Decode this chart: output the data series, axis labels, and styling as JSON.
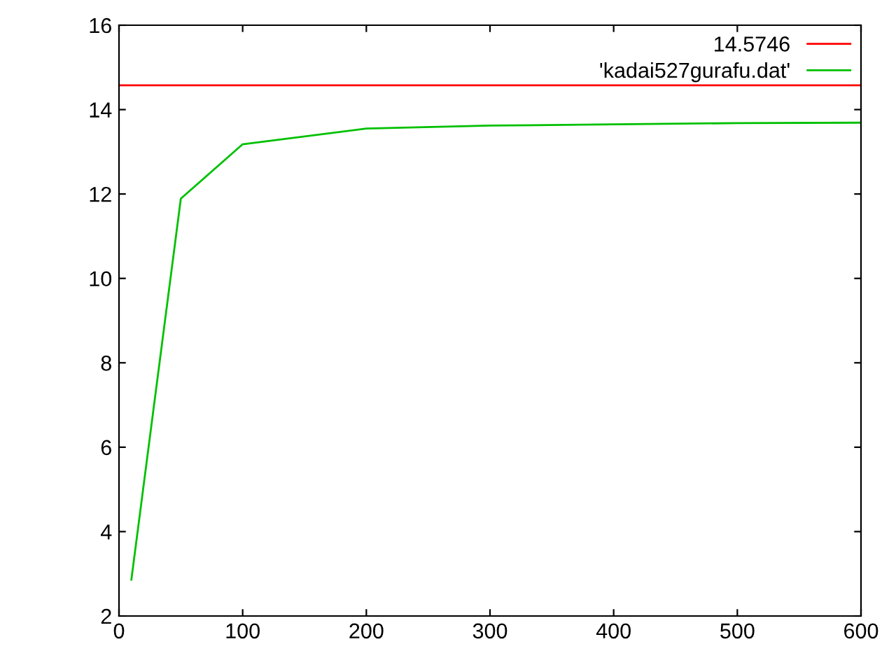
{
  "chart_data": {
    "type": "line",
    "x": [
      10,
      50,
      100,
      200,
      300,
      400,
      500,
      600
    ],
    "series": [
      {
        "name": "'kadai527gurafu.dat'",
        "color": "#00c000",
        "values": [
          2.86,
          11.89,
          13.18,
          13.55,
          13.62,
          13.65,
          13.68,
          13.69
        ]
      }
    ],
    "ref_lines": [
      {
        "axis": "y",
        "value": 14.5746,
        "label": "14.5746",
        "color": "#ff0000"
      }
    ],
    "xlim": [
      0,
      600
    ],
    "xticks": [
      0,
      100,
      200,
      300,
      400,
      500,
      600
    ],
    "ylim": [
      2,
      16
    ],
    "yticks": [
      2,
      4,
      6,
      8,
      10,
      12,
      14,
      16
    ],
    "grid": false,
    "legend": "top right",
    "marker": "none",
    "line_style": "solid"
  }
}
